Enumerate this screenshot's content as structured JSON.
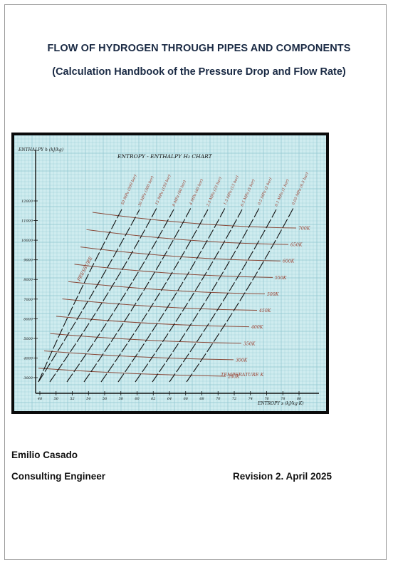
{
  "document": {
    "title_line1": "FLOW OF HYDROGEN THROUGH PIPES AND COMPONENTS",
    "title_line2": "(Calculation Handbook of the Pressure Drop and Flow Rate)",
    "author": "Emilio Casado",
    "role": "Consulting Engineer",
    "revision": "Revision 2. April 2025"
  },
  "figure": {
    "title": "ENTROPY - ENTHALPY H₂ CHART",
    "ylabel": "ENTHALPY h (kJ/kg)",
    "xlabel": "ENTROPY s (kJ/kg·K)",
    "pressure_label": "PRESSURE",
    "temperature_label": "TEMPERATURE K",
    "y_ticks": [
      "12000",
      "11000",
      "10000",
      "9000",
      "8000",
      "7000",
      "6000",
      "5000",
      "4000",
      "3000"
    ],
    "x_ticks": [
      "48",
      "50",
      "52",
      "54",
      "56",
      "58",
      "60",
      "62",
      "64",
      "66",
      "68",
      "70",
      "72",
      "74",
      "76",
      "78",
      "80"
    ],
    "pressure_labels": [
      "50 MPa (500 bar)",
      "30 MPa (300 bar)",
      "15 MPa (150 bar)",
      "8 MPa (80 bar)",
      "4 MPa (40 bar)",
      "2.5 MPa (25 bar)",
      "1.5 MPa (15 bar)",
      "0.5 MPa (5 bar)",
      "0.2 MPa (2 bar)",
      "0.1 MPa (1 bar)",
      "0.05 MPa (0.5 bar)"
    ],
    "isotherm_labels": [
      "700K",
      "650K",
      "600K",
      "550K",
      "500K",
      "450K",
      "400K",
      "350K",
      "300K",
      "280K"
    ],
    "colors": {
      "grid": "#8fc6cf",
      "ink": "#111111",
      "isotherm": "#8a4a3a",
      "label": "#9a3b2b",
      "background": "#cfecef"
    }
  }
}
